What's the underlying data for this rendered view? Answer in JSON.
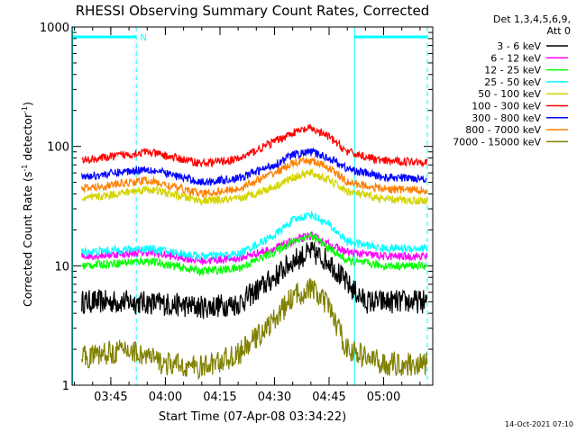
{
  "chart_data": {
    "type": "line",
    "title": "RHESSI Observing Summary Count Rates, Corrected",
    "xlabel": "Start Time (07-Apr-08 03:34:22)",
    "ylabel": "Corrected Count Rate (s⁻¹ detector⁻¹)",
    "ylabel_main": "Corrected Count Rate (s",
    "ylabel_sup1": "-1",
    "ylabel_mid": " detector",
    "ylabel_sup2": "-1",
    "ylabel_end": ")",
    "y_scale": "log",
    "xlim": [
      "03:34:22",
      "05:13:30"
    ],
    "ylim": [
      1,
      1000
    ],
    "x_ticks": [
      "03:45",
      "04:00",
      "04:15",
      "04:30",
      "04:45",
      "05:00"
    ],
    "y_ticks": [
      "1",
      "10",
      "100",
      "1000"
    ],
    "legend_header": [
      "Det 1,3,4,5,6,9,",
      "Att 0"
    ],
    "legend_position": "right",
    "footer_date": "14-Oct-2021 07:10",
    "annotations": [
      {
        "type": "flag_bar",
        "color": "#00ffff",
        "label": "N",
        "from": "03:34:22",
        "to": "03:52:00"
      },
      {
        "type": "flag_bar",
        "color": "#00ffff",
        "label": "",
        "from": "04:52:00",
        "to": "05:12:00"
      },
      {
        "type": "vline",
        "style": "solid",
        "color": "#00ffff",
        "x": "03:34:30"
      },
      {
        "type": "vline",
        "style": "dashed",
        "color": "#00ffff",
        "x": "03:52:00"
      },
      {
        "type": "vline",
        "style": "solid",
        "color": "#00ffff",
        "x": "04:52:00"
      },
      {
        "type": "vline",
        "style": "dashed",
        "color": "#00ffff",
        "x": "05:12:00"
      }
    ],
    "series": [
      {
        "name": "3 - 6 keV",
        "color": "#000000",
        "points": [
          [
            "03:37",
            5
          ],
          [
            "03:50",
            5
          ],
          [
            "04:00",
            4.8
          ],
          [
            "04:10",
            4.5
          ],
          [
            "04:20",
            4.8
          ],
          [
            "04:30",
            8
          ],
          [
            "04:35",
            11
          ],
          [
            "04:40",
            13
          ],
          [
            "04:45",
            11
          ],
          [
            "04:50",
            7
          ],
          [
            "04:55",
            5
          ],
          [
            "05:12",
            5
          ]
        ]
      },
      {
        "name": "6 - 12 keV",
        "color": "#ff00ff",
        "points": [
          [
            "03:37",
            12
          ],
          [
            "03:55",
            13
          ],
          [
            "04:10",
            11
          ],
          [
            "04:20",
            11.5
          ],
          [
            "04:30",
            14
          ],
          [
            "04:35",
            16
          ],
          [
            "04:40",
            18
          ],
          [
            "04:45",
            15
          ],
          [
            "04:50",
            13
          ],
          [
            "05:00",
            12
          ],
          [
            "05:12",
            12
          ]
        ]
      },
      {
        "name": "12 - 25 keV",
        "color": "#00ff00",
        "points": [
          [
            "03:37",
            10
          ],
          [
            "03:55",
            11
          ],
          [
            "04:10",
            9
          ],
          [
            "04:20",
            9.5
          ],
          [
            "04:30",
            13
          ],
          [
            "04:35",
            16
          ],
          [
            "04:40",
            18
          ],
          [
            "04:45",
            14
          ],
          [
            "04:50",
            11
          ],
          [
            "05:00",
            10
          ],
          [
            "05:12",
            10
          ]
        ]
      },
      {
        "name": "25 - 50 keV",
        "color": "#00ffff",
        "points": [
          [
            "03:37",
            13
          ],
          [
            "03:55",
            14
          ],
          [
            "04:10",
            12
          ],
          [
            "04:20",
            12.5
          ],
          [
            "04:30",
            18
          ],
          [
            "04:35",
            24
          ],
          [
            "04:40",
            27
          ],
          [
            "04:45",
            22
          ],
          [
            "04:50",
            16
          ],
          [
            "05:00",
            14
          ],
          [
            "05:12",
            14
          ]
        ]
      },
      {
        "name": "50 - 100 keV",
        "color": "#d4d400",
        "points": [
          [
            "03:37",
            36
          ],
          [
            "03:55",
            44
          ],
          [
            "04:10",
            35
          ],
          [
            "04:20",
            36
          ],
          [
            "04:30",
            46
          ],
          [
            "04:35",
            55
          ],
          [
            "04:40",
            60
          ],
          [
            "04:45",
            52
          ],
          [
            "04:50",
            42
          ],
          [
            "05:00",
            36
          ],
          [
            "05:12",
            35
          ]
        ]
      },
      {
        "name": "100 - 300 keV",
        "color": "#ff0000",
        "points": [
          [
            "03:37",
            76
          ],
          [
            "03:55",
            90
          ],
          [
            "04:10",
            72
          ],
          [
            "04:20",
            78
          ],
          [
            "04:30",
            110
          ],
          [
            "04:35",
            130
          ],
          [
            "04:40",
            142
          ],
          [
            "04:45",
            120
          ],
          [
            "04:50",
            90
          ],
          [
            "05:00",
            75
          ],
          [
            "05:12",
            75
          ]
        ]
      },
      {
        "name": "300 - 800 keV",
        "color": "#0000ff",
        "points": [
          [
            "03:37",
            55
          ],
          [
            "03:55",
            65
          ],
          [
            "04:10",
            50
          ],
          [
            "04:20",
            54
          ],
          [
            "04:30",
            70
          ],
          [
            "04:35",
            85
          ],
          [
            "04:40",
            90
          ],
          [
            "04:45",
            80
          ],
          [
            "04:50",
            65
          ],
          [
            "05:00",
            55
          ],
          [
            "05:12",
            54
          ]
        ]
      },
      {
        "name": "800 - 7000 keV",
        "color": "#ff8000",
        "points": [
          [
            "03:37",
            44
          ],
          [
            "03:55",
            52
          ],
          [
            "04:10",
            40
          ],
          [
            "04:20",
            44
          ],
          [
            "04:30",
            60
          ],
          [
            "04:35",
            72
          ],
          [
            "04:40",
            76
          ],
          [
            "04:45",
            66
          ],
          [
            "04:50",
            50
          ],
          [
            "05:00",
            44
          ],
          [
            "05:12",
            43
          ]
        ]
      },
      {
        "name": "7000 - 15000 keV",
        "color": "#808000",
        "points": [
          [
            "03:37",
            1.7
          ],
          [
            "03:50",
            2
          ],
          [
            "04:00",
            1.5
          ],
          [
            "04:10",
            1.4
          ],
          [
            "04:20",
            1.8
          ],
          [
            "04:30",
            3.5
          ],
          [
            "04:35",
            5.5
          ],
          [
            "04:40",
            6.5
          ],
          [
            "04:45",
            4.5
          ],
          [
            "04:50",
            2
          ],
          [
            "05:00",
            1.5
          ],
          [
            "05:12",
            1.5
          ]
        ]
      }
    ]
  }
}
